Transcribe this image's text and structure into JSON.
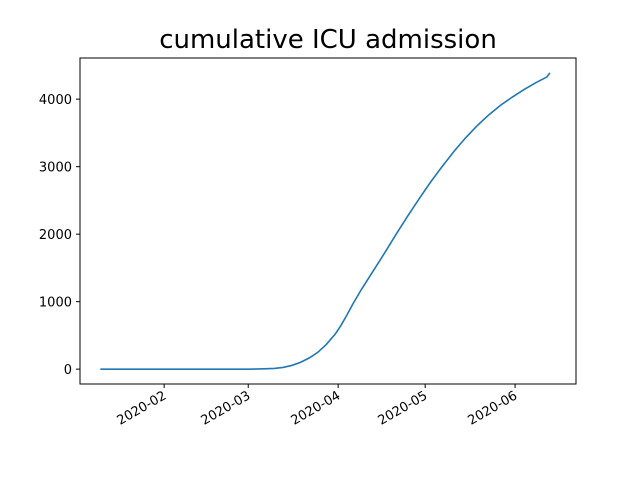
{
  "chart_data": {
    "type": "line",
    "title": "cumulative ICU admission",
    "xlabel": "",
    "ylabel": "",
    "x_tick_labels": [
      "2020-02",
      "2020-03",
      "2020-04",
      "2020-05",
      "2020-06"
    ],
    "x_ticks": [
      "2020-02-01",
      "2020-03-01",
      "2020-04-01",
      "2020-05-01",
      "2020-06-01"
    ],
    "y_tick_labels": [
      "0",
      "1000",
      "2000",
      "3000",
      "4000"
    ],
    "y_ticks": [
      0,
      1000,
      2000,
      3000,
      4000
    ],
    "xlim": [
      "2020-01-03",
      "2020-06-22"
    ],
    "ylim": [
      -220,
      4610
    ],
    "grid": false,
    "series": [
      {
        "color": "#1f77b4",
        "points": [
          [
            "2020-01-10",
            0
          ],
          [
            "2020-01-20",
            0
          ],
          [
            "2020-02-01",
            0
          ],
          [
            "2020-02-15",
            0
          ],
          [
            "2020-03-01",
            0
          ],
          [
            "2020-03-05",
            3
          ],
          [
            "2020-03-10",
            10
          ],
          [
            "2020-03-13",
            25
          ],
          [
            "2020-03-16",
            55
          ],
          [
            "2020-03-19",
            100
          ],
          [
            "2020-03-22",
            165
          ],
          [
            "2020-03-25",
            250
          ],
          [
            "2020-03-28",
            370
          ],
          [
            "2020-03-31",
            520
          ],
          [
            "2020-04-02",
            650
          ],
          [
            "2020-04-04",
            800
          ],
          [
            "2020-04-06",
            960
          ],
          [
            "2020-04-09",
            1180
          ],
          [
            "2020-04-13",
            1450
          ],
          [
            "2020-04-17",
            1720
          ],
          [
            "2020-04-21",
            2000
          ],
          [
            "2020-04-25",
            2270
          ],
          [
            "2020-04-29",
            2530
          ],
          [
            "2020-05-03",
            2780
          ],
          [
            "2020-05-07",
            3010
          ],
          [
            "2020-05-11",
            3230
          ],
          [
            "2020-05-15",
            3430
          ],
          [
            "2020-05-19",
            3610
          ],
          [
            "2020-05-23",
            3770
          ],
          [
            "2020-05-27",
            3910
          ],
          [
            "2020-05-31",
            4030
          ],
          [
            "2020-06-04",
            4140
          ],
          [
            "2020-06-08",
            4240
          ],
          [
            "2020-06-12",
            4330
          ],
          [
            "2020-06-13",
            4390
          ]
        ]
      }
    ]
  }
}
